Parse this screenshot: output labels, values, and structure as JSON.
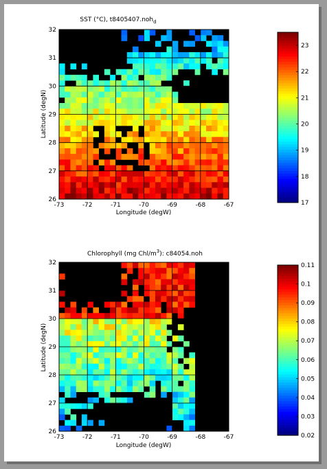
{
  "chart_data": [
    {
      "type": "heatmap",
      "title": "SST (°C), t8405407.noh",
      "title_subscript": "d",
      "xlabel": "Longitude (degW)",
      "ylabel": "Latitude (degN)",
      "xlim": [
        -73,
        -67
      ],
      "ylim": [
        26,
        32
      ],
      "xticks": [
        "-73",
        "-72",
        "-71",
        "-70",
        "-69",
        "-68",
        "-67"
      ],
      "yticks": [
        "26",
        "27",
        "28",
        "29",
        "30",
        "31",
        "32"
      ],
      "grid": true,
      "colorbar": {
        "range": [
          17,
          23.5
        ],
        "ticks": [
          "17",
          "18",
          "19",
          "20",
          "21",
          "22",
          "23"
        ],
        "colormap": "jet"
      },
      "masked_color": "#000000"
    },
    {
      "type": "heatmap",
      "title": "Chlorophyll (mg Chl/m",
      "title_superscript": "3",
      "title_suffix": "): c84054.noh",
      "xlabel": "Longitude (degW)",
      "ylabel": "Latitude (degN)",
      "xlim": [
        -73,
        -67
      ],
      "ylim": [
        26,
        32
      ],
      "xticks": [
        "-73",
        "-72",
        "-71",
        "-70",
        "-69",
        "-68",
        "-67"
      ],
      "yticks": [
        "26",
        "27",
        "28",
        "29",
        "30",
        "31",
        "32"
      ],
      "grid": true,
      "colorbar": {
        "range": [
          0.02,
          0.11
        ],
        "ticks": [
          "0.02",
          "0.03",
          "0.04",
          "0.05",
          "0.06",
          "0.07",
          "0.08",
          "0.09",
          "0.1",
          "0.11"
        ],
        "colormap": "jet"
      },
      "masked_color": "#000000"
    }
  ]
}
